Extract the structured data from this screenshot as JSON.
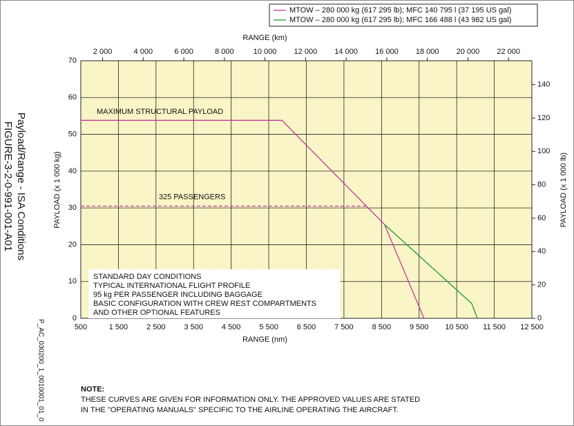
{
  "chart_data": {
    "type": "line",
    "title": "Payload/Range - ISA Conditions",
    "figure_label": "FIGURE-3-2-0-991-001-A01",
    "xlabel": "RANGE (nm)",
    "x2label": "RANGE (km)",
    "ylabel": "PAYLOAD (x 1 000 kg)",
    "y2label": "PAYLOAD (x 1 000 lb)",
    "xlim": [
      500,
      12500
    ],
    "xticks": [
      500,
      {
        "value": 1500,
        "label": "1 500"
      },
      {
        "value": 2500,
        "label": "2 500"
      },
      {
        "value": 3500,
        "label": "3 500"
      },
      {
        "value": 4500,
        "label": "4 500"
      },
      {
        "value": 5500,
        "label": "5 500"
      },
      {
        "value": 6500,
        "label": "6 500"
      },
      {
        "value": 7500,
        "label": "7 500"
      },
      {
        "value": 8500,
        "label": "8 500"
      },
      {
        "value": 9500,
        "label": "9 500"
      },
      {
        "value": 10500,
        "label": "10 500"
      },
      {
        "value": 11500,
        "label": "11 500"
      },
      {
        "value": 12500,
        "label": "12 500"
      }
    ],
    "x2lim": [
      926,
      23150
    ],
    "x2ticks": [
      {
        "value": 2000,
        "label": "2 000"
      },
      {
        "value": 4000,
        "label": "4 000"
      },
      {
        "value": 6000,
        "label": "6 000"
      },
      {
        "value": 8000,
        "label": "8 000"
      },
      {
        "value": 10000,
        "label": "10 000"
      },
      {
        "value": 12000,
        "label": "12 000"
      },
      {
        "value": 14000,
        "label": "14 000"
      },
      {
        "value": 16000,
        "label": "16 000"
      },
      {
        "value": 18000,
        "label": "18 000"
      },
      {
        "value": 20000,
        "label": "20 000"
      },
      {
        "value": 22000,
        "label": "22 000"
      }
    ],
    "ylim": [
      0,
      70
    ],
    "yticks": [
      0,
      10,
      20,
      30,
      40,
      50,
      60,
      70
    ],
    "y2lim": [
      0,
      154.32
    ],
    "y2ticks": [
      0,
      20,
      40,
      60,
      80,
      100,
      120,
      140
    ],
    "grid": true,
    "background": "#faf5c6",
    "series": [
      {
        "name": "MTOW – 280 000 kg (617 295 lb); MFC 140 795 l (37 195 US gal)",
        "color": "#c0399a",
        "x": [
          500,
          5850,
          8580,
          9630
        ],
        "values": [
          53.8,
          53.8,
          25.5,
          0
        ]
      },
      {
        "name": "MTOW – 280 000 kg (617 295 lb); MFC 166 488 l (43 982 US gal)",
        "color": "#1a9a3a",
        "x": [
          8580,
          10900,
          11050
        ],
        "values": [
          25.5,
          4,
          0
        ]
      }
    ],
    "reference_lines": [
      {
        "label": "325 PASSENGERS",
        "color": "#c0399a",
        "dash": true,
        "x": [
          500,
          8090
        ],
        "values": [
          30.5,
          30.5
        ]
      }
    ],
    "annotations": [
      "MAXIMUM STRUCTURAL PAYLOAD"
    ],
    "conditions": [
      "STANDARD DAY CONDITIONS",
      "TYPICAL INTERNATIONAL FLIGHT PROFILE",
      "95 kg PER PASSENGER INCLUDING BAGGAGE",
      "BASIC CONFIGURATION WITH CREW REST COMPARTMENTS",
      "AND OTHER OPTIONAL FEATURES"
    ]
  },
  "drawing_id": "P_AC_030200_1_0010001_01_0",
  "note": {
    "heading": "NOTE:",
    "lines": [
      "THESE CURVES ARE GIVEN FOR INFORMATION ONLY. THE APPROVED VALUES ARE STATED",
      "IN THE \"OPERATING MANUALS\" SPECIFIC TO THE AIRLINE OPERATING THE AIRCRAFT."
    ]
  }
}
